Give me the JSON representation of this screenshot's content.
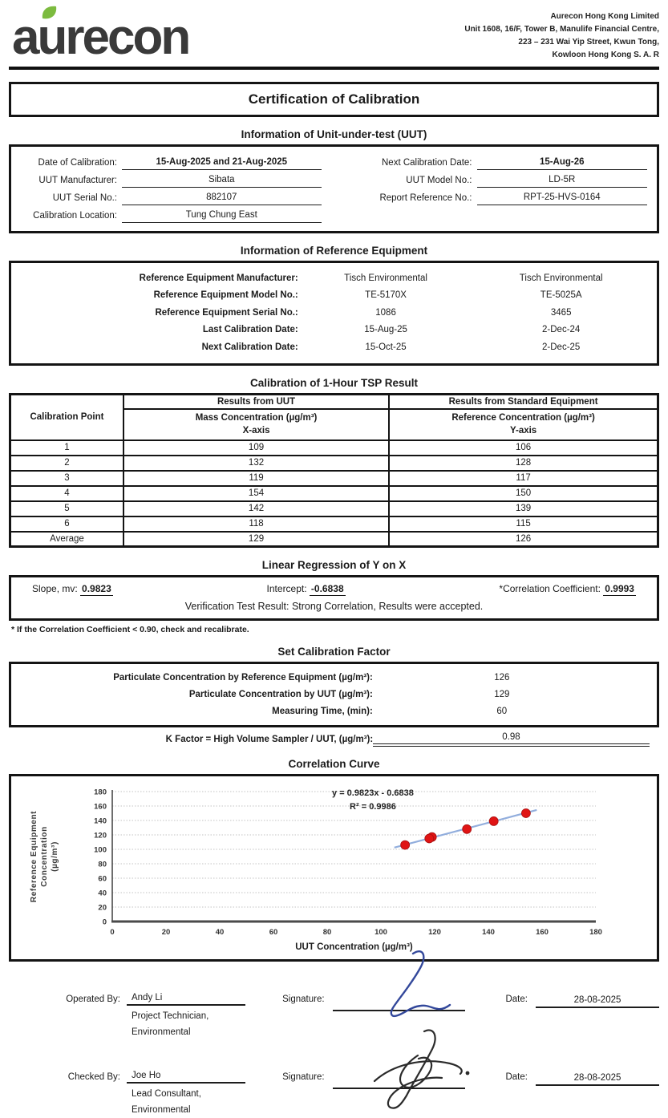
{
  "header": {
    "logo_text": "aurecon",
    "address_lines": [
      "Aurecon Hong Kong Limited",
      "Unit 1608, 16/F, Tower B, Manulife Financial Centre,",
      "223 – 231 Wai Yip Street, Kwun Tong,",
      "Kowloon Hong Kong S. A. R"
    ]
  },
  "title": "Certification of Calibration",
  "uut_info": {
    "heading": "Information of Unit-under-test (UUT)",
    "left_rows": [
      {
        "label": "Date of Calibration:",
        "value": "15-Aug-2025 and 21-Aug-2025"
      },
      {
        "label": "UUT Manufacturer:",
        "value": "Sibata"
      },
      {
        "label": "UUT Serial No.:",
        "value": "882107"
      },
      {
        "label": "Calibration Location:",
        "value": "Tung Chung East"
      }
    ],
    "right_rows": [
      {
        "label": "Next Calibration Date:",
        "value": "15-Aug-26"
      },
      {
        "label": "UUT Model No.:",
        "value": "LD-5R"
      },
      {
        "label": "Report Reference No.:",
        "value": "RPT-25-HVS-0164"
      }
    ]
  },
  "ref_equipment": {
    "heading": "Information of Reference Equipment",
    "rows": [
      {
        "label": "Reference Equipment Manufacturer:",
        "col1": "Tisch Environmental",
        "col2": "Tisch Environmental"
      },
      {
        "label": "Reference Equipment Model No.:",
        "col1": "TE-5170X",
        "col2": "TE-5025A"
      },
      {
        "label": "Reference Equipment Serial No.:",
        "col1": "1086",
        "col2": "3465"
      },
      {
        "label": "Last Calibration Date:",
        "col1": "15-Aug-25",
        "col2": "2-Dec-24"
      },
      {
        "label": "Next Calibration Date:",
        "col1": "15-Oct-25",
        "col2": "2-Dec-25"
      }
    ]
  },
  "tsp_table": {
    "heading": "Calibration of 1-Hour TSP Result",
    "col0_header": "Calibration Point",
    "uut_header": "Results from UUT",
    "std_header": "Results from Standard Equipment",
    "uut_subheader": "Mass Concentration (µg/m³)",
    "std_subheader": "Reference Concentration (µg/m³)",
    "uut_axis": "X-axis",
    "std_axis": "Y-axis",
    "rows": [
      {
        "point": "1",
        "uut": "109",
        "std": "106"
      },
      {
        "point": "2",
        "uut": "132",
        "std": "128"
      },
      {
        "point": "3",
        "uut": "119",
        "std": "117"
      },
      {
        "point": "4",
        "uut": "154",
        "std": "150"
      },
      {
        "point": "5",
        "uut": "142",
        "std": "139"
      },
      {
        "point": "6",
        "uut": "118",
        "std": "115"
      },
      {
        "point": "Average",
        "uut": "129",
        "std": "126"
      }
    ]
  },
  "regression": {
    "heading": "Linear Regression of Y on X",
    "slope_label": "Slope, mv:",
    "slope": "0.9823",
    "intercept_label": "Intercept:",
    "intercept": "-0.6838",
    "corr_label": "*Correlation Coefficient:",
    "corr": "0.9993",
    "verification_label": "Verification Test Result:",
    "verification": "Strong Correlation, Results were accepted.",
    "footnote": "* If the Correlation Coefficient < 0.90, check and recalibrate."
  },
  "calibration_factor": {
    "heading": "Set Calibration Factor",
    "rows": [
      {
        "label": "Particulate Concentration by Reference Equipment (µg/m³):",
        "value": "126"
      },
      {
        "label": "Particulate Concentration by UUT (µg/m³):",
        "value": "129"
      },
      {
        "label": "Measuring Time, (min):",
        "value": "60"
      }
    ],
    "k_factor_label": "K Factor = High Volume Sampler / UUT, (µg/m³):",
    "k_factor": "0.98"
  },
  "chart_data": {
    "type": "scatter",
    "title": "Correlation Curve",
    "xlabel": "UUT Concentration (µg/m³)",
    "ylabel": "Reference Equipment Concentration (µg/m³)",
    "ylabel_lines": [
      "Reference Equipment",
      "Concentration",
      "(µg/m³)"
    ],
    "xlim": [
      0,
      180
    ],
    "ylim": [
      0,
      180
    ],
    "xticks": [
      0,
      20,
      40,
      60,
      80,
      100,
      120,
      140,
      160,
      180
    ],
    "yticks": [
      0,
      20,
      40,
      60,
      80,
      100,
      120,
      140,
      160,
      180
    ],
    "points": [
      [
        109,
        106
      ],
      [
        132,
        128
      ],
      [
        119,
        117
      ],
      [
        154,
        150
      ],
      [
        142,
        139
      ],
      [
        118,
        115
      ]
    ],
    "trendline": {
      "slope": 0.9823,
      "intercept": -0.6838,
      "x_start": 105,
      "x_end": 158
    },
    "annotation_line1": "y = 0.9823x - 0.6838",
    "annotation_line2": "R² = 0.9986",
    "grid": true,
    "legend": "none",
    "point_color": "#e01414",
    "line_color": "#92aedd"
  },
  "signatures": [
    {
      "role_label": "Operated By:",
      "name": "Andy Li",
      "title_line1": "Project Technician,",
      "title_line2": "Environmental",
      "signature_label": "Signature:",
      "date_label": "Date:",
      "date": "28-08-2025"
    },
    {
      "role_label": "Checked By:",
      "name": "Joe Ho",
      "title_line1": "Lead Consultant,",
      "title_line2": "Environmental",
      "signature_label": "Signature:",
      "date_label": "Date:",
      "date": "28-08-2025"
    }
  ]
}
